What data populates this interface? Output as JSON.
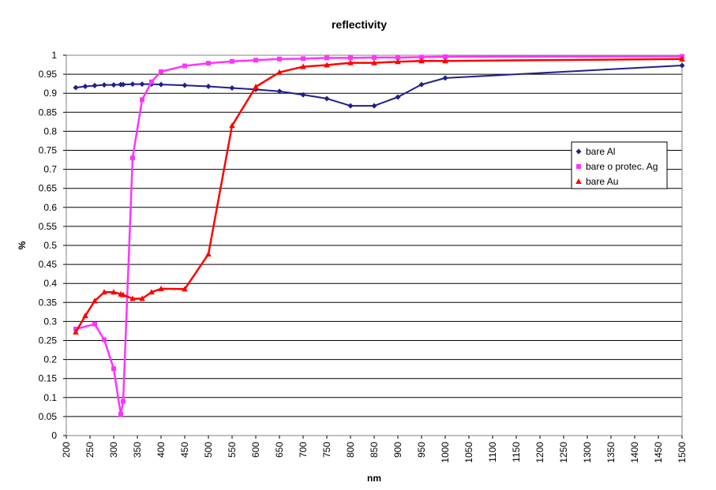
{
  "chart_data": {
    "type": "line",
    "title": "reflectivity",
    "xlabel": "nm",
    "ylabel": "%",
    "xlim": [
      200,
      1500
    ],
    "ylim": [
      0,
      1
    ],
    "x_ticks": [
      "200",
      "250",
      "300",
      "350",
      "400",
      "450",
      "500",
      "550",
      "600",
      "650",
      "700",
      "750",
      "800",
      "850",
      "900",
      "950",
      "1000",
      "1050",
      "1100",
      "1150",
      "1200",
      "1250",
      "1300",
      "1350",
      "1400",
      "1450",
      "1500"
    ],
    "y_ticks": [
      "0",
      "0.05",
      "0.1",
      "0.15",
      "0.2",
      "0.25",
      "0.3",
      "0.35",
      "0.4",
      "0.45",
      "0.5",
      "0.55",
      "0.6",
      "0.65",
      "0.7",
      "0.75",
      "0.8",
      "0.85",
      "0.9",
      "0.95",
      "1"
    ],
    "grid": "horizontal",
    "legend_position": "right",
    "series": [
      {
        "name": "bare Al",
        "color": "#1f1f8c",
        "marker": "diamond",
        "x": [
          220,
          240,
          260,
          280,
          300,
          315,
          320,
          340,
          360,
          380,
          400,
          450,
          500,
          550,
          600,
          650,
          700,
          750,
          800,
          850,
          900,
          950,
          1000,
          1500
        ],
        "y": [
          0.915,
          0.918,
          0.92,
          0.922,
          0.922,
          0.923,
          0.923,
          0.924,
          0.924,
          0.924,
          0.923,
          0.921,
          0.918,
          0.914,
          0.91,
          0.905,
          0.896,
          0.886,
          0.867,
          0.867,
          0.89,
          0.923,
          0.94,
          0.973
        ]
      },
      {
        "name": "bare o protec. Ag",
        "color": "#ff33ff",
        "marker": "square",
        "x": [
          220,
          260,
          280,
          300,
          315,
          320,
          340,
          360,
          380,
          400,
          450,
          500,
          550,
          600,
          650,
          700,
          750,
          800,
          850,
          900,
          950,
          1000,
          1500
        ],
        "y": [
          0.28,
          0.293,
          0.252,
          0.176,
          0.056,
          0.09,
          0.73,
          0.883,
          0.93,
          0.957,
          0.972,
          0.979,
          0.984,
          0.987,
          0.99,
          0.991,
          0.993,
          0.993,
          0.994,
          0.994,
          0.995,
          0.996,
          0.997
        ]
      },
      {
        "name": "bare Au",
        "color": "#ff0000",
        "marker": "triangle",
        "x": [
          220,
          240,
          260,
          280,
          300,
          315,
          320,
          340,
          360,
          380,
          400,
          450,
          500,
          550,
          600,
          650,
          700,
          750,
          800,
          850,
          900,
          950,
          1000,
          1500
        ],
        "y": [
          0.272,
          0.315,
          0.354,
          0.377,
          0.377,
          0.372,
          0.37,
          0.36,
          0.36,
          0.377,
          0.386,
          0.385,
          0.477,
          0.815,
          0.917,
          0.955,
          0.97,
          0.974,
          0.98,
          0.98,
          0.983,
          0.985,
          0.985,
          0.99
        ]
      }
    ]
  }
}
